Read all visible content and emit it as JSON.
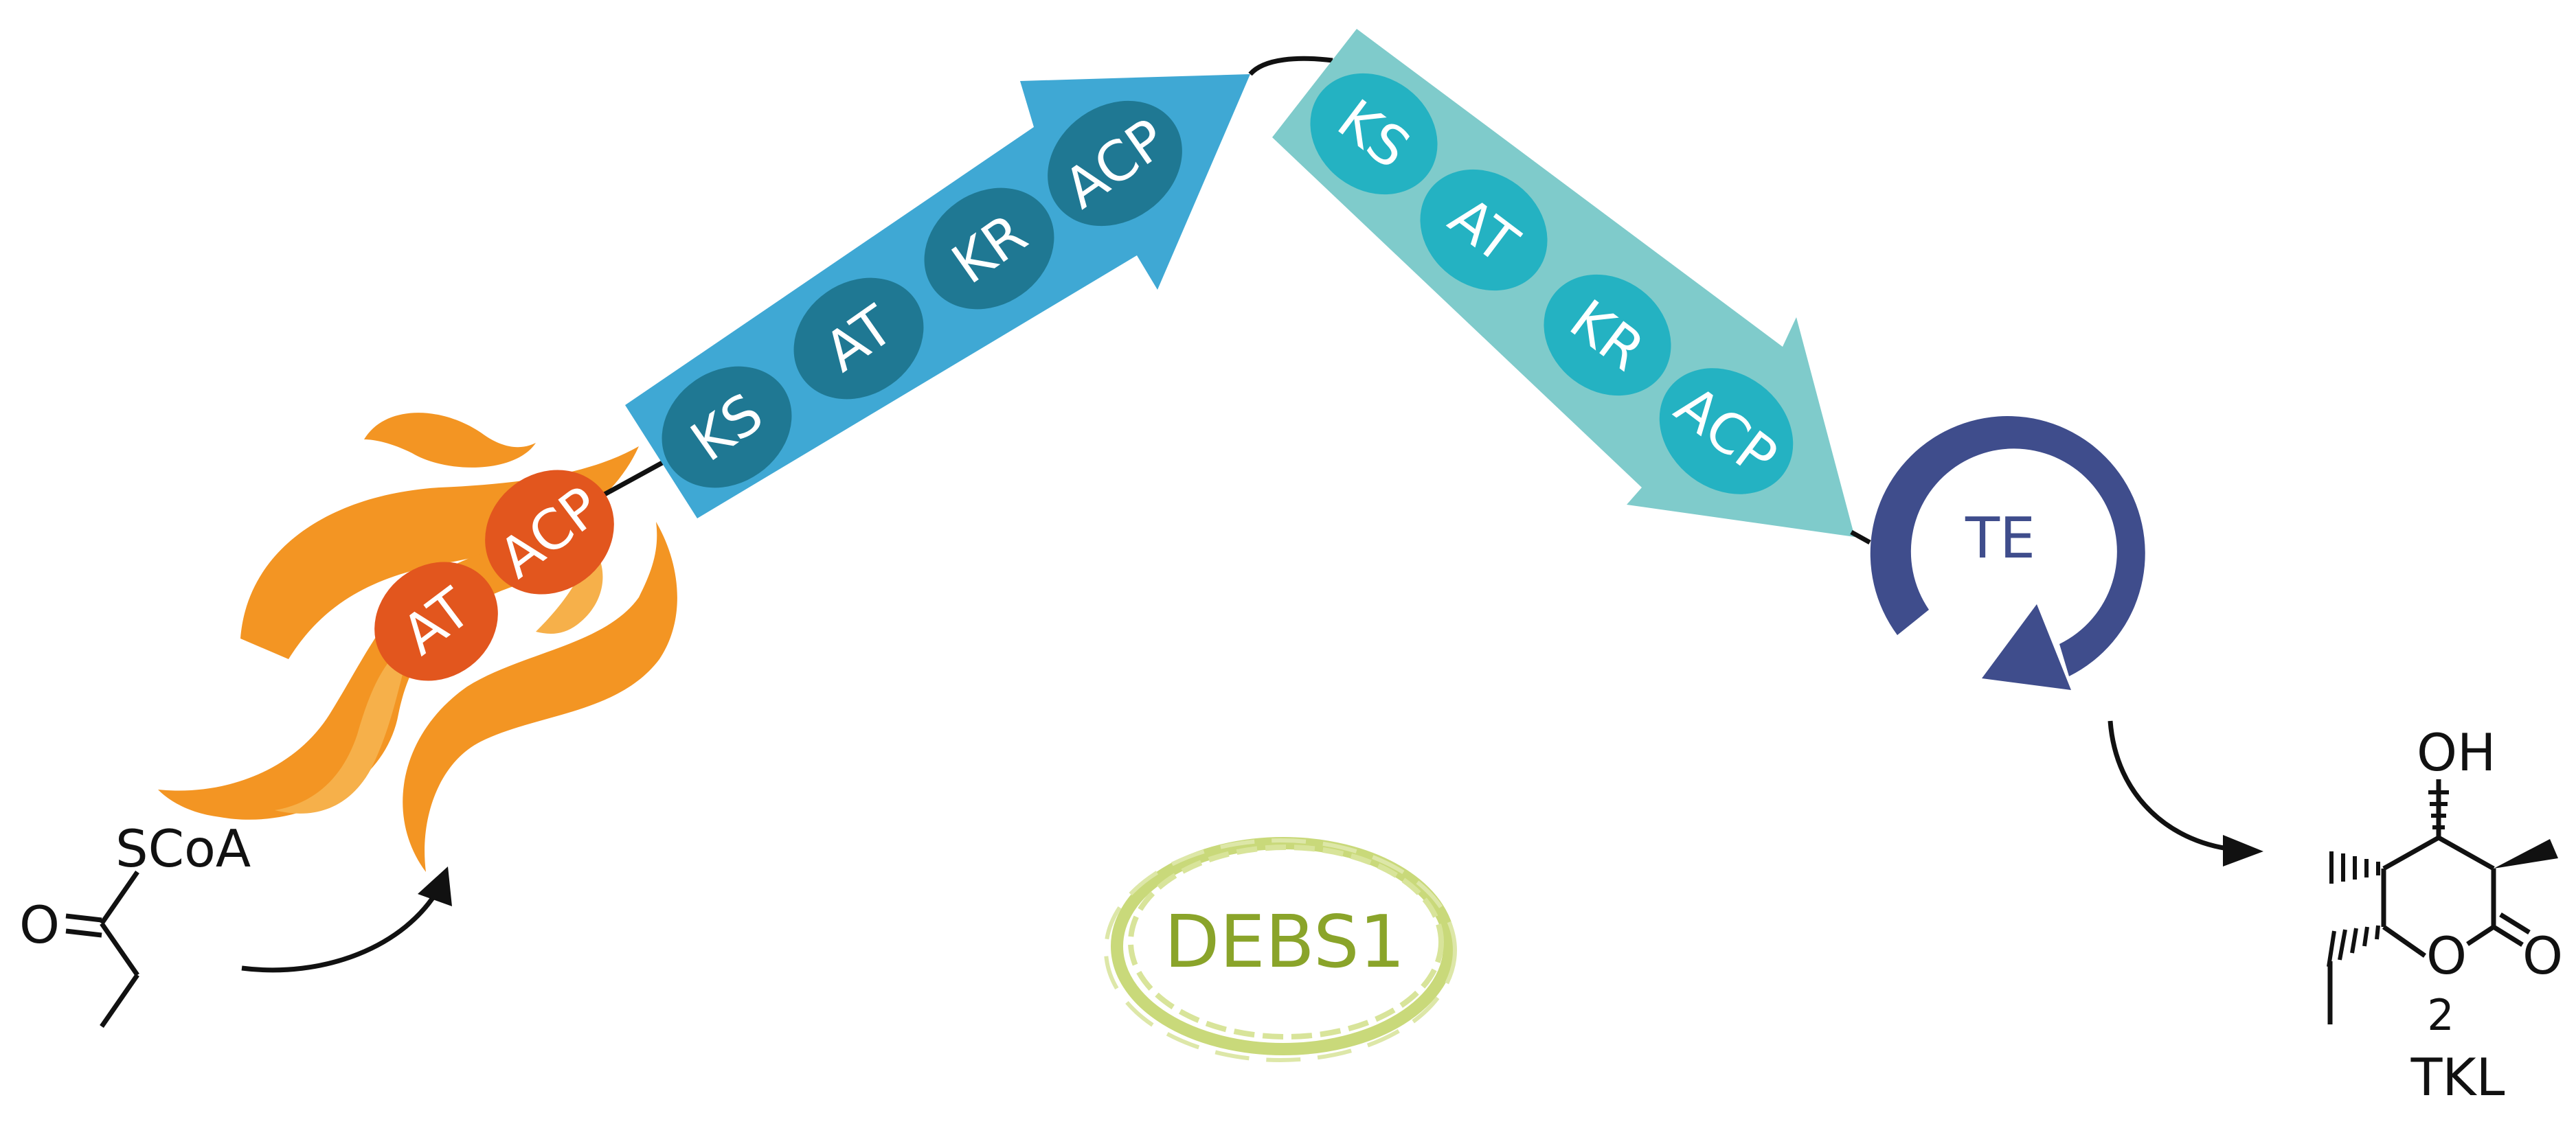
{
  "loading_module": {
    "domains": [
      "AT",
      "ACP"
    ],
    "colors": {
      "domain": "#e2561e",
      "flame": "#f39523",
      "flame_light": "#f6b04a",
      "text": "#ffffff"
    }
  },
  "module1": {
    "domains": [
      "KS",
      "AT",
      "KR",
      "ACP"
    ],
    "colors": {
      "arrow": "#3fa8d4",
      "domain": "#1f7893",
      "text": "#ffffff"
    }
  },
  "module2": {
    "domains": [
      "KS",
      "AT",
      "KR",
      "ACP"
    ],
    "colors": {
      "arrow": "#7fcbcb",
      "domain": "#24b2c2",
      "text": "#ffffff"
    }
  },
  "thioesterase": {
    "label": "TE",
    "colors": {
      "ring": "#3f4d8c"
    }
  },
  "substrate": {
    "thioester_label": "SCoA",
    "carbonyl_label": "O"
  },
  "product": {
    "hydroxyl_label": "OH",
    "ring_oxygen_label": "O",
    "carbonyl_label": "O",
    "compound_number": "2",
    "compound_name": "TKL"
  },
  "badge": {
    "label": "DEBS1",
    "colors": {
      "text": "#8aa42a",
      "ring": "#c9d97a"
    }
  }
}
